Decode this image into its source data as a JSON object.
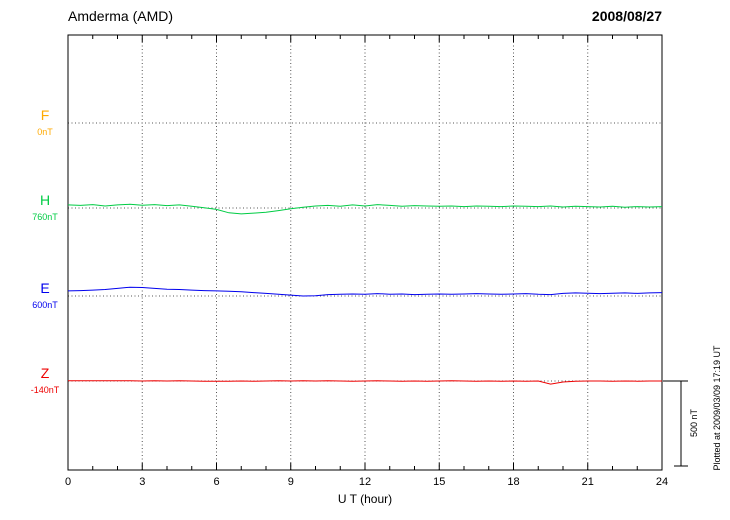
{
  "header": {
    "title": "Amderma (AMD)",
    "date": "2008/08/27"
  },
  "scale_bar": {
    "label": "500 nT",
    "nT": 500
  },
  "footer_note": "Plotted at 2009/03/09 17:19 UT",
  "chart_data": {
    "type": "line",
    "title": "Amderma (AMD) magnetogram",
    "date": "2008/08/27",
    "xlabel": "U T (hour)",
    "x_range": [
      0,
      24
    ],
    "x_ticks": [
      0,
      3,
      6,
      9,
      12,
      15,
      18,
      21,
      24
    ],
    "x_minor_step": 1,
    "grid": "dotted vertical at 3-hour marks, dotted horizontal at each channel baseline",
    "x_hours_step": 0.5,
    "colors": {
      "F": "#FFAA00",
      "H": "#00CC44",
      "E": "#0000EE",
      "Z": "#EE0000"
    },
    "series": [
      {
        "name": "F",
        "label": "F",
        "baseline_label": "0nT",
        "baseline": 0,
        "color": "#FFAA00",
        "values": null,
        "note": "no trace visible, baseline only"
      },
      {
        "name": "H",
        "label": "H",
        "baseline_label": "760nT",
        "baseline": 760,
        "color": "#00CC44",
        "values": [
          778,
          775,
          780,
          772,
          778,
          782,
          776,
          780,
          774,
          778,
          770,
          762,
          752,
          732,
          725,
          730,
          735,
          745,
          755,
          765,
          772,
          775,
          770,
          778,
          772,
          780,
          775,
          770,
          774,
          772,
          770,
          772,
          768,
          772,
          770,
          768,
          772,
          770,
          768,
          772,
          766,
          770,
          768,
          766,
          770,
          764,
          768,
          766,
          768
        ]
      },
      {
        "name": "E",
        "label": "E",
        "baseline_label": "600nT",
        "baseline": 600,
        "color": "#0000EE",
        "values": [
          630,
          632,
          635,
          638,
          645,
          652,
          650,
          645,
          640,
          638,
          635,
          632,
          630,
          628,
          625,
          620,
          615,
          610,
          605,
          600,
          602,
          608,
          610,
          612,
          610,
          614,
          610,
          612,
          608,
          610,
          612,
          610,
          612,
          614,
          612,
          610,
          612,
          614,
          610,
          608,
          615,
          618,
          616,
          614,
          616,
          618,
          615,
          618,
          620
        ]
      },
      {
        "name": "Z",
        "label": "Z",
        "baseline_label": "-140nT",
        "baseline": -140,
        "color": "#EE0000",
        "values": [
          -138,
          -139,
          -138,
          -139,
          -138,
          -139,
          -140,
          -139,
          -140,
          -139,
          -140,
          -141,
          -142,
          -141,
          -140,
          -141,
          -140,
          -139,
          -140,
          -139,
          -140,
          -139,
          -140,
          -141,
          -140,
          -139,
          -140,
          -141,
          -140,
          -141,
          -140,
          -139,
          -140,
          -141,
          -140,
          -141,
          -140,
          -141,
          -140,
          -158,
          -146,
          -141,
          -140,
          -140,
          -141,
          -140,
          -141,
          -140,
          -140
        ]
      }
    ]
  }
}
